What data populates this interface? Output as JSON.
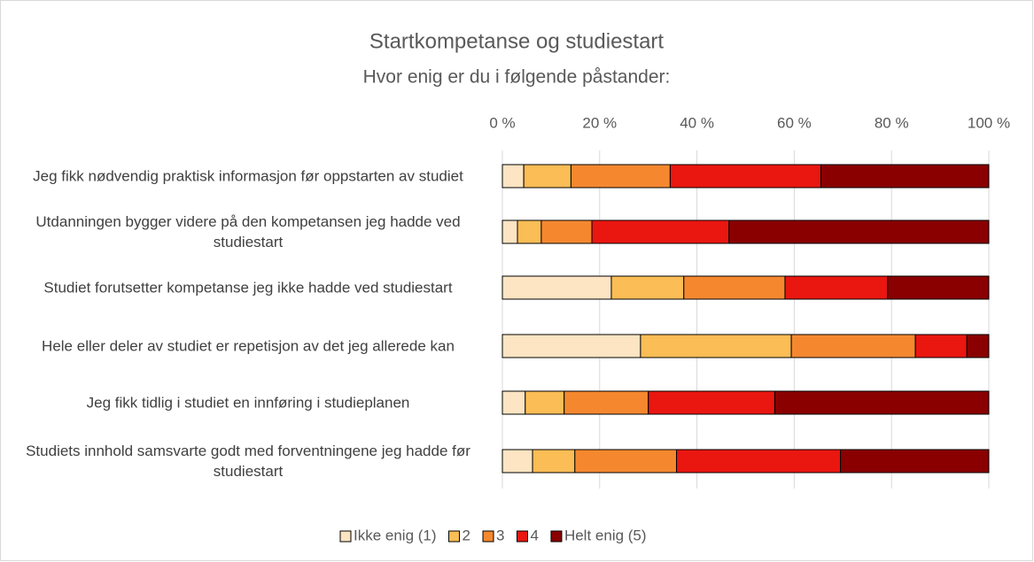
{
  "chart_data": {
    "type": "stacked_barh",
    "title": "Startkompetanse og studiestart",
    "subtitle": "Hvor enig er du i følgende påstander:",
    "categories": [
      "Jeg fikk nødvendig praktisk informasjon før oppstarten av studiet",
      "Utdanningen bygger videre på den kompetansen jeg hadde ved studiestart",
      "Studiet forutsetter kompetanse jeg ikke hadde ved studiestart",
      "Hele eller deler av studiet er repetisjon av det jeg allerede kan",
      "Jeg fikk tidlig i studiet en innføring i studieplanen",
      "Studiets innhold samsvarte godt med forventningene jeg hadde før studiestart"
    ],
    "series": [
      {
        "name": "Ikke enig (1)",
        "color": "#fde4c2",
        "values": [
          4.4,
          3.1,
          22.4,
          28.4,
          4.7,
          6.2
        ]
      },
      {
        "name": "2",
        "color": "#fbbd55",
        "values": [
          9.7,
          4.9,
          14.9,
          31.0,
          8.0,
          8.7
        ]
      },
      {
        "name": "3",
        "color": "#f5882f",
        "values": [
          20.4,
          10.4,
          20.8,
          25.5,
          17.3,
          20.9
        ]
      },
      {
        "name": "4",
        "color": "#ea1610",
        "values": [
          31.0,
          28.2,
          21.1,
          10.6,
          26.0,
          33.7
        ]
      },
      {
        "name": "Helt enig (5)",
        "color": "#8a0000",
        "values": [
          34.5,
          53.4,
          20.8,
          4.5,
          44.0,
          30.5
        ]
      }
    ],
    "xlim": [
      0,
      100
    ],
    "xticks": [
      {
        "value": 0,
        "label": "0 %"
      },
      {
        "value": 20,
        "label": "20 %"
      },
      {
        "value": 40,
        "label": "40 %"
      },
      {
        "value": 60,
        "label": "60 %"
      },
      {
        "value": 80,
        "label": "80 %"
      },
      {
        "value": 100,
        "label": "100 %"
      }
    ],
    "grid": true,
    "legend": "bottom"
  }
}
